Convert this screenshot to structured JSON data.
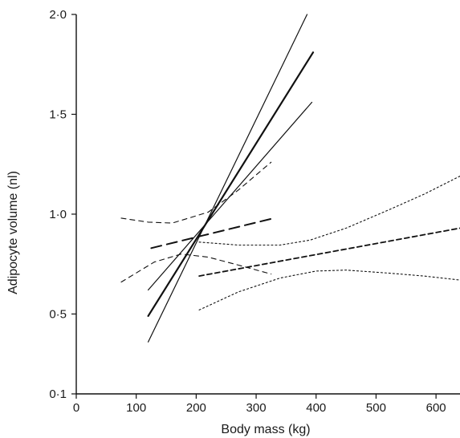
{
  "chart_data": {
    "type": "line",
    "title": "",
    "xlabel": "Body mass (kg)",
    "ylabel": "Adipocyte volume (nl)",
    "xlim": [
      0,
      640
    ],
    "ylim": [
      0.1,
      2.0
    ],
    "x_ticks": [
      0,
      100,
      200,
      300,
      400,
      500,
      600
    ],
    "x_tick_labels": [
      "0",
      "100",
      "200",
      "300",
      "400",
      "500",
      "600"
    ],
    "y_ticks": [
      0.1,
      0.5,
      1.0,
      1.5,
      2.0
    ],
    "y_tick_labels": [
      "0·1",
      "0·5",
      "1·0",
      "1·5",
      "2·0"
    ],
    "grid": false,
    "series": [
      {
        "style": "solid-thick",
        "x": [
          120,
          395
        ],
        "y": [
          0.49,
          1.81
        ]
      },
      {
        "style": "solid-thin",
        "x": [
          120,
          385
        ],
        "y": [
          0.36,
          2.0
        ]
      },
      {
        "style": "solid-thin",
        "x": [
          120,
          393
        ],
        "y": [
          0.62,
          1.56
        ]
      },
      {
        "style": "long-dash",
        "x": [
          125,
          330
        ],
        "y": [
          0.83,
          0.98
        ]
      },
      {
        "style": "medium-dash",
        "x": [
          75,
          120,
          160,
          220,
          270,
          325
        ],
        "y": [
          0.98,
          0.96,
          0.955,
          1.01,
          1.12,
          1.26
        ]
      },
      {
        "style": "medium-dash",
        "x": [
          75,
          130,
          175,
          220,
          270,
          325
        ],
        "y": [
          0.66,
          0.76,
          0.8,
          0.785,
          0.745,
          0.7
        ]
      },
      {
        "style": "short-dash",
        "x": [
          205,
          640
        ],
        "y": [
          0.69,
          0.93
        ]
      },
      {
        "style": "dotted",
        "x": [
          205,
          270,
          340,
          390,
          450,
          520,
          580,
          640
        ],
        "y": [
          0.86,
          0.845,
          0.845,
          0.87,
          0.93,
          1.02,
          1.1,
          1.19
        ]
      },
      {
        "style": "dotted",
        "x": [
          205,
          270,
          340,
          400,
          450,
          520,
          580,
          640
        ],
        "y": [
          0.52,
          0.61,
          0.68,
          0.715,
          0.72,
          0.705,
          0.69,
          0.67
        ]
      }
    ]
  }
}
